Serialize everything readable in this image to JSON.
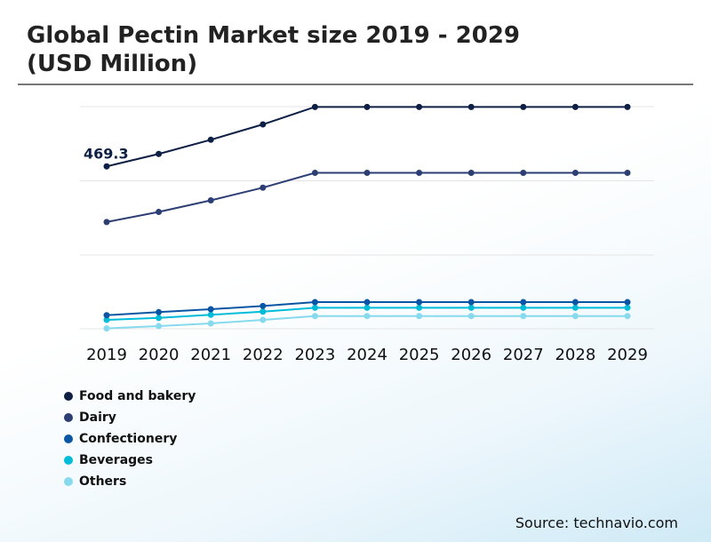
{
  "title": "Global Pectin Market size 2019 - 2029",
  "subtitle": "(USD Million)",
  "source": "Source: technavio.com",
  "chart_data": {
    "type": "line",
    "title": "Global Pectin Market size 2019 - 2029 (USD Million)",
    "categories": [
      "2019",
      "2020",
      "2021",
      "2022",
      "2023",
      "2024",
      "2025",
      "2026",
      "2027",
      "2028",
      "2029"
    ],
    "grid": true,
    "legend": "bottom-left",
    "ylim": [
      0,
      642
    ],
    "annotations": [
      {
        "series": "Food and bakery",
        "category": "2019",
        "label": "469.3"
      }
    ],
    "series": [
      {
        "name": "Food and bakery",
        "color": "#0d1f45",
        "values": [
          469.3,
          505.2,
          546.2,
          590.6,
          641.1,
          641.1,
          641.1,
          641.1,
          641.1,
          641.1,
          641.1
        ]
      },
      {
        "name": "Dairy",
        "color": "#2c3e73",
        "values": [
          308.5,
          337.7,
          371.1,
          407.8,
          450.6,
          450.6,
          450.6,
          450.6,
          450.6,
          450.6,
          450.6
        ]
      },
      {
        "name": "Confectionery",
        "color": "#0b56a4",
        "values": [
          39.2,
          48.0,
          56.4,
          65.9,
          76.9,
          76.9,
          76.9,
          76.9,
          76.9,
          76.9,
          76.9
        ]
      },
      {
        "name": "Beverages",
        "color": "#00bcd9",
        "values": [
          25.6,
          31.5,
          40.3,
          49.5,
          60.8,
          60.8,
          60.8,
          60.8,
          60.8,
          60.8,
          60.8
        ]
      },
      {
        "name": "Others",
        "color": "#87d9ee",
        "values": [
          1,
          7.7,
          15.4,
          25.6,
          36.7,
          36.7,
          36.7,
          36.7,
          36.7,
          36.7,
          36.7
        ]
      }
    ]
  }
}
